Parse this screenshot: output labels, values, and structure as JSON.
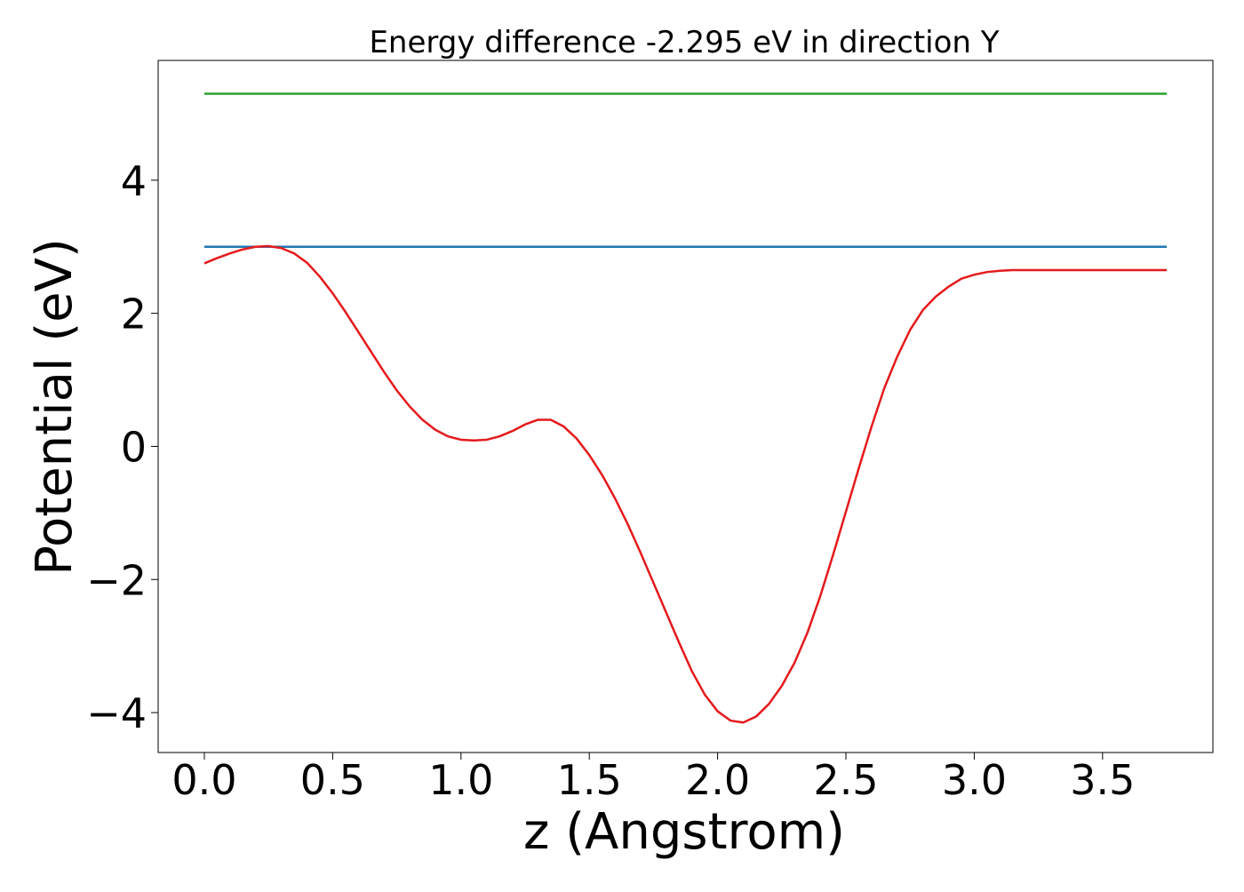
{
  "chart_data": {
    "type": "line",
    "title": "Energy difference -2.295 eV in direction Y",
    "xlabel": "z (Angstrom)",
    "ylabel": "Potential (eV)",
    "xlim": [
      -0.18,
      3.93
    ],
    "ylim": [
      -4.6,
      5.8
    ],
    "xticks": [
      0.0,
      0.5,
      1.0,
      1.5,
      2.0,
      2.5,
      3.0,
      3.5
    ],
    "xtick_labels": [
      "0.0",
      "0.5",
      "1.0",
      "1.5",
      "2.0",
      "2.5",
      "3.0",
      "3.5"
    ],
    "yticks": [
      -4,
      -2,
      0,
      2,
      4
    ],
    "ytick_labels": [
      "−4",
      "−2",
      "0",
      "2",
      "4"
    ],
    "grid": false,
    "series": [
      {
        "color": "#1f77b4",
        "x": [
          0.0,
          3.75
        ],
        "y": [
          3.0,
          3.0
        ]
      },
      {
        "color": "#2ca02c",
        "x": [
          0.0,
          3.75
        ],
        "y": [
          5.3,
          5.3
        ]
      },
      {
        "color": "#e41a1c",
        "x": [
          0.0,
          0.05,
          0.1,
          0.15,
          0.2,
          0.25,
          0.3,
          0.35,
          0.4,
          0.45,
          0.5,
          0.55,
          0.6,
          0.65,
          0.7,
          0.75,
          0.8,
          0.85,
          0.9,
          0.95,
          1.0,
          1.05,
          1.1,
          1.15,
          1.2,
          1.25,
          1.3,
          1.35,
          1.4,
          1.45,
          1.5,
          1.55,
          1.6,
          1.65,
          1.7,
          1.75,
          1.8,
          1.85,
          1.9,
          1.95,
          2.0,
          2.05,
          2.1,
          2.15,
          2.2,
          2.25,
          2.3,
          2.35,
          2.4,
          2.45,
          2.5,
          2.55,
          2.6,
          2.65,
          2.7,
          2.75,
          2.8,
          2.85,
          2.9,
          2.95,
          3.0,
          3.05,
          3.1,
          3.15,
          3.2,
          3.25,
          3.3,
          3.35,
          3.4,
          3.45,
          3.5,
          3.55,
          3.6,
          3.65,
          3.7,
          3.75
        ],
        "y": [
          2.75,
          2.83,
          2.9,
          2.96,
          3.0,
          3.01,
          2.98,
          2.9,
          2.76,
          2.55,
          2.3,
          2.02,
          1.72,
          1.42,
          1.12,
          0.84,
          0.6,
          0.4,
          0.25,
          0.15,
          0.1,
          0.09,
          0.1,
          0.15,
          0.23,
          0.33,
          0.4,
          0.4,
          0.3,
          0.12,
          -0.13,
          -0.43,
          -0.78,
          -1.17,
          -1.6,
          -2.05,
          -2.5,
          -2.95,
          -3.38,
          -3.73,
          -3.98,
          -4.12,
          -4.15,
          -4.06,
          -3.87,
          -3.6,
          -3.25,
          -2.8,
          -2.25,
          -1.63,
          -0.98,
          -0.33,
          0.3,
          0.88,
          1.35,
          1.75,
          2.05,
          2.25,
          2.4,
          2.52,
          2.58,
          2.62,
          2.64,
          2.65,
          2.65,
          2.65,
          2.65,
          2.65,
          2.65,
          2.65,
          2.65,
          2.65,
          2.65,
          2.65,
          2.65,
          2.65
        ]
      }
    ]
  }
}
